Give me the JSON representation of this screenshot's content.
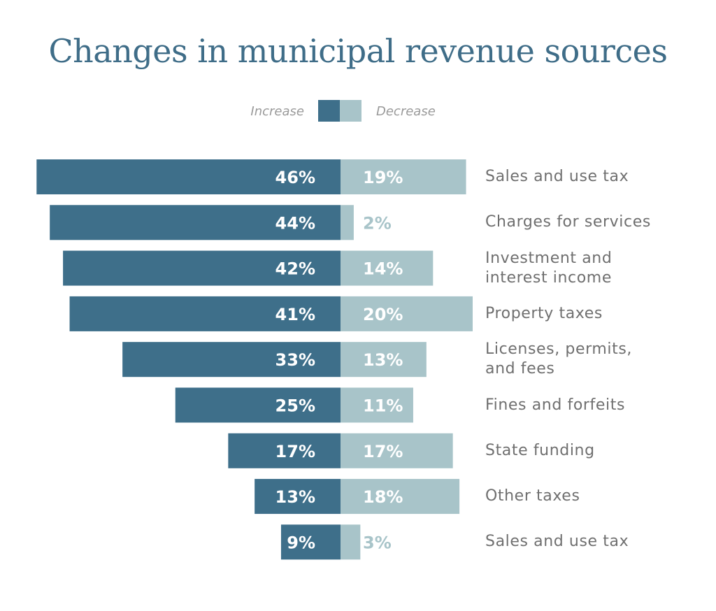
{
  "colors": {
    "increase": "#3e6f8a",
    "decrease": "#a8c4c9",
    "title": "#3f6d88",
    "label": "#6f6f6f",
    "legend_text": "#9a9a9a"
  },
  "legend": {
    "increase_label": "Increase",
    "decrease_label": "Decrease"
  },
  "chart_data": {
    "type": "bar",
    "title": "Changes in municipal revenue sources",
    "categories": [
      "Sales and use tax",
      "Charges for services",
      "Investment and interest income",
      "Property taxes",
      "Licenses, permits, and fees",
      "Fines and forfeits",
      "State funding",
      "Other taxes",
      "Sales and use tax"
    ],
    "series": [
      {
        "name": "Increase",
        "values": [
          46,
          44,
          42,
          41,
          33,
          25,
          17,
          13,
          9
        ],
        "labels": [
          "46%",
          "44%",
          "42%",
          "41%",
          "33%",
          "25%",
          "17%",
          "13%",
          "9%"
        ]
      },
      {
        "name": "Decrease",
        "values": [
          19,
          2,
          14,
          20,
          13,
          11,
          17,
          18,
          3
        ],
        "labels": [
          "19%",
          "2%",
          "14%",
          "20%",
          "13%",
          "11%",
          "17%",
          "18%",
          "3%"
        ]
      }
    ],
    "xlabel": "",
    "ylabel": "",
    "unit": "%"
  }
}
